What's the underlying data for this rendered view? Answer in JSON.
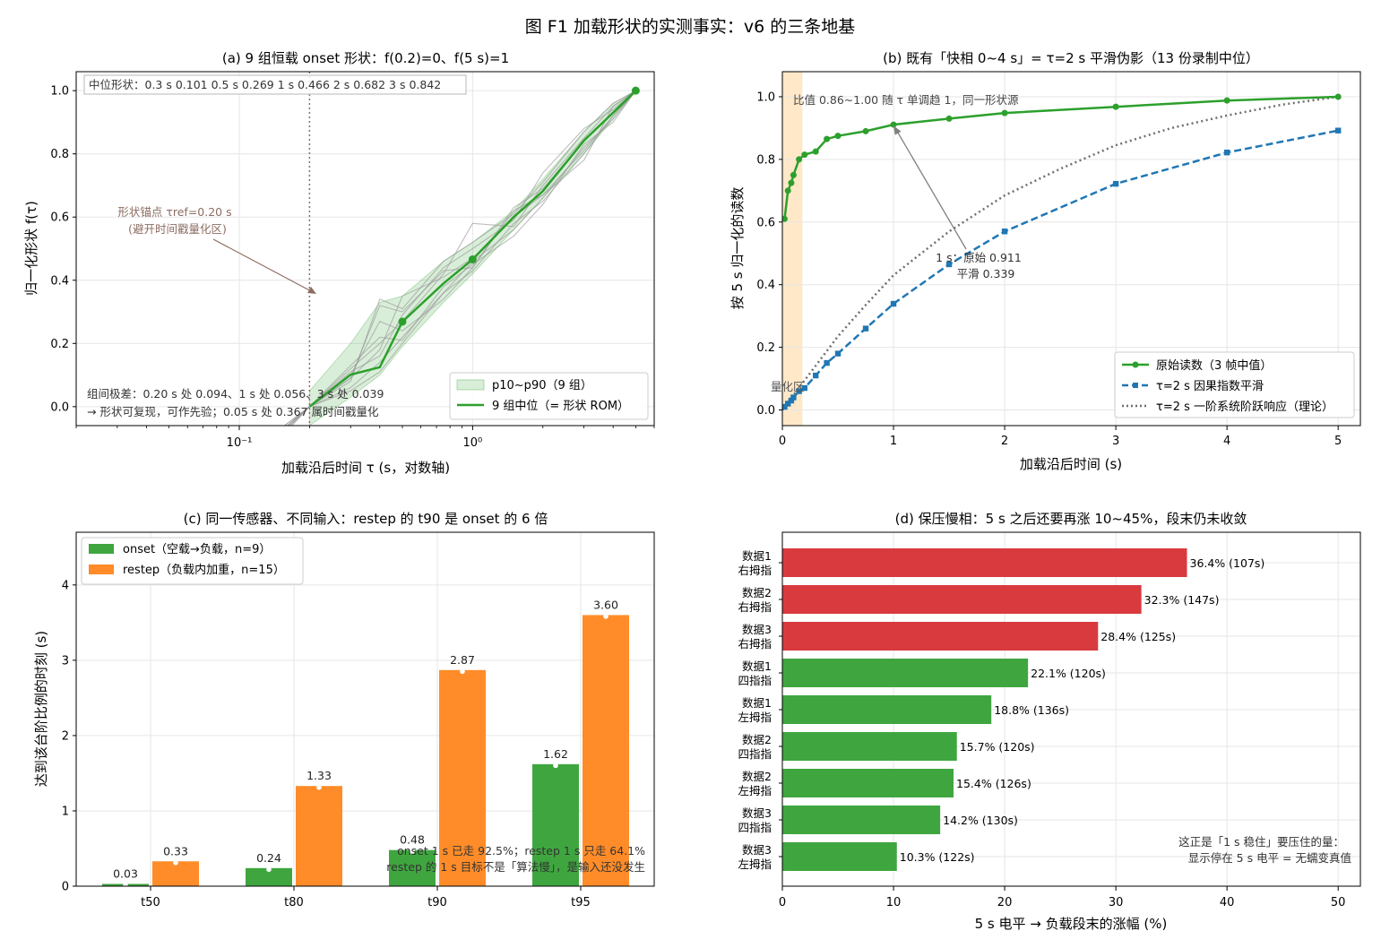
{
  "figure_title": "图 F1  加载形状的实测事实：v6 的三条地基",
  "chart_data": [
    {
      "type": "line",
      "title": "(a) 9 组恒载 onset 形状：f(0.2)=0、f(5 s)=1",
      "xlabel": "加载沿后时间 τ (s，对数轴)",
      "ylabel": "归一化形状 f(τ)",
      "xscale": "log",
      "xlim": [
        0.02,
        6
      ],
      "ylim": [
        -0.06,
        1.06
      ],
      "xticks": [
        {
          "value": 0.1,
          "label": "10⁻¹"
        },
        {
          "value": 1,
          "label": "10⁰"
        }
      ],
      "yticks": [
        "0.0",
        "0.2",
        "0.4",
        "0.6",
        "0.8",
        "1.0"
      ],
      "grid": true,
      "legend_position": "bottom-right",
      "median_series": {
        "name": "9 组中位（= 形状 ROM）",
        "color": "#2ca02c",
        "x": [
          0.2,
          0.3,
          0.4,
          0.5,
          0.75,
          1,
          1.5,
          2,
          3,
          4,
          5
        ],
        "y": [
          0.0,
          0.101,
          0.125,
          0.269,
          0.39,
          0.466,
          0.6,
          0.682,
          0.842,
          0.93,
          1.0
        ],
        "markers_x": [
          0.5,
          1,
          5
        ],
        "markers_y": [
          0.269,
          0.466,
          1.0
        ]
      },
      "band": {
        "name": "p10~p90（9 组）",
        "color": "#2ca02c",
        "x": [
          0.2,
          0.3,
          0.4,
          0.5,
          0.75,
          1,
          1.5,
          2,
          3,
          4,
          5
        ],
        "lower": [
          -0.06,
          0.03,
          0.1,
          0.19,
          0.33,
          0.42,
          0.56,
          0.66,
          0.8,
          0.91,
          1.0
        ],
        "upper": [
          0.05,
          0.2,
          0.33,
          0.35,
          0.46,
          0.52,
          0.62,
          0.72,
          0.87,
          0.96,
          1.0
        ]
      },
      "group_lines": [
        {
          "x": [
            0.05,
            0.15,
            0.2,
            0.3,
            0.4,
            0.5,
            0.75,
            1,
            1.5,
            2,
            3,
            4,
            5
          ],
          "y": [
            -0.37,
            -0.1,
            0.0,
            0.09,
            0.32,
            0.3,
            0.43,
            0.44,
            0.62,
            0.67,
            0.81,
            0.92,
            1.0
          ]
        },
        {
          "x": [
            0.05,
            0.15,
            0.2,
            0.3,
            0.4,
            0.5,
            0.75,
            1,
            1.5,
            2,
            3,
            4,
            5
          ],
          "y": [
            -0.3,
            -0.08,
            0.0,
            0.06,
            0.14,
            0.22,
            0.36,
            0.46,
            0.56,
            0.66,
            0.82,
            0.91,
            1.0
          ]
        },
        {
          "x": [
            0.05,
            0.15,
            0.2,
            0.3,
            0.4,
            0.5,
            0.75,
            1,
            1.5,
            2,
            3,
            4,
            5
          ],
          "y": [
            -0.33,
            -0.09,
            0.0,
            0.12,
            0.2,
            0.27,
            0.42,
            0.58,
            0.57,
            0.7,
            0.85,
            0.95,
            1.0
          ]
        },
        {
          "x": [
            0.05,
            0.15,
            0.2,
            0.3,
            0.4,
            0.5,
            0.75,
            1,
            1.5,
            2,
            3,
            4,
            5
          ],
          "y": [
            -0.28,
            -0.07,
            0.0,
            0.09,
            0.18,
            0.35,
            0.41,
            0.47,
            0.6,
            0.67,
            0.78,
            0.95,
            1.0
          ]
        },
        {
          "x": [
            0.05,
            0.15,
            0.2,
            0.3,
            0.4,
            0.5,
            0.75,
            1,
            1.5,
            2,
            3,
            4,
            5
          ],
          "y": [
            -0.31,
            -0.08,
            0.0,
            0.1,
            0.27,
            0.24,
            0.34,
            0.44,
            0.63,
            0.69,
            0.84,
            0.93,
            1.0
          ]
        },
        {
          "x": [
            0.05,
            0.15,
            0.2,
            0.3,
            0.4,
            0.5,
            0.75,
            1,
            1.5,
            2,
            3,
            4,
            5
          ],
          "y": [
            -0.29,
            -0.08,
            0.0,
            0.11,
            0.16,
            0.29,
            0.44,
            0.5,
            0.59,
            0.74,
            0.88,
            0.94,
            1.0
          ]
        },
        {
          "x": [
            0.05,
            0.15,
            0.2,
            0.3,
            0.4,
            0.5,
            0.75,
            1,
            1.5,
            2,
            3,
            4,
            5
          ],
          "y": [
            -0.32,
            -0.09,
            0.0,
            0.13,
            0.22,
            0.21,
            0.38,
            0.45,
            0.54,
            0.64,
            0.83,
            0.9,
            1.0
          ]
        },
        {
          "x": [
            0.05,
            0.15,
            0.2,
            0.3,
            0.4,
            0.5,
            0.75,
            1,
            1.5,
            2,
            3,
            4,
            5
          ],
          "y": [
            -0.27,
            -0.07,
            0.0,
            0.05,
            0.11,
            0.2,
            0.36,
            0.43,
            0.58,
            0.65,
            0.8,
            0.92,
            1.0
          ]
        },
        {
          "x": [
            0.05,
            0.15,
            0.2,
            0.3,
            0.4,
            0.5,
            0.75,
            1,
            1.5,
            2,
            3,
            4,
            5
          ],
          "y": [
            -0.3,
            -0.08,
            0.0,
            0.08,
            0.34,
            0.31,
            0.46,
            0.52,
            0.61,
            0.71,
            0.87,
            0.96,
            1.0
          ]
        }
      ],
      "anchor": {
        "x": 0.2,
        "label_line1": "形状锚点 τref=0.20 s",
        "label_line2": "(避开时间戳量化区)",
        "color": "#8c6d62"
      },
      "top_note": "中位形状：0.3 s 0.101  0.5 s 0.269  1 s 0.466  2 s 0.682  3 s 0.842",
      "bottom_note_line1": "组间极差：0.20 s 处 0.094、1 s 处 0.056、3 s 处 0.039",
      "bottom_note_line2": "→ 形状可复现，可作先验；0.05 s 处 0.367 属时间戳量化"
    },
    {
      "type": "line",
      "title": "(b) 既有「快相 0~4 s」= τ=2 s 平滑伪影（13 份录制中位）",
      "xlabel": "加载沿后时间 (s)",
      "ylabel": "按 5 s 归一化的读数",
      "xlim": [
        0,
        5.2
      ],
      "ylim": [
        -0.05,
        1.08
      ],
      "xticks": [
        "0",
        "1",
        "2",
        "3",
        "4",
        "5"
      ],
      "yticks": [
        "0.0",
        "0.2",
        "0.4",
        "0.6",
        "0.8",
        "1.0"
      ],
      "grid": true,
      "legend_position": "bottom-right",
      "shaded_region": {
        "x": [
          0,
          0.18
        ],
        "color": "#ffe6c2",
        "label": "量化区"
      },
      "series": [
        {
          "name": "原始读数（3 帧中值）",
          "color": "#2ca02c",
          "style": "solid",
          "marker": "circle",
          "x": [
            0.02,
            0.05,
            0.08,
            0.1,
            0.15,
            0.2,
            0.3,
            0.4,
            0.5,
            0.75,
            1,
            1.5,
            2,
            3,
            4,
            5
          ],
          "y": [
            0.61,
            0.7,
            0.725,
            0.75,
            0.8,
            0.815,
            0.825,
            0.865,
            0.875,
            0.89,
            0.911,
            0.93,
            0.948,
            0.968,
            0.988,
            1.0
          ]
        },
        {
          "name": "τ=2 s 因果指数平滑",
          "color": "#1f77b4",
          "style": "dashed",
          "marker": "square",
          "x": [
            0.02,
            0.05,
            0.08,
            0.1,
            0.15,
            0.2,
            0.3,
            0.4,
            0.5,
            0.75,
            1,
            1.5,
            2,
            3,
            4,
            5
          ],
          "y": [
            0.01,
            0.02,
            0.03,
            0.04,
            0.06,
            0.07,
            0.11,
            0.15,
            0.18,
            0.26,
            0.339,
            0.465,
            0.57,
            0.722,
            0.822,
            0.892
          ]
        },
        {
          "name": "τ=2 s 一阶系统阶跃响应（理论）",
          "color": "#6e6e6e",
          "style": "dotted",
          "marker": "none",
          "x": [
            0,
            0.25,
            0.5,
            0.75,
            1,
            1.5,
            2,
            2.5,
            3,
            3.5,
            4,
            4.5,
            5
          ],
          "y": [
            0,
            0.118,
            0.235,
            0.335,
            0.43,
            0.57,
            0.685,
            0.77,
            0.845,
            0.9,
            0.94,
            0.975,
            1.0
          ]
        }
      ],
      "annotations": {
        "ratio_note": "比值 0.86~1.00 随 τ 单调趋 1，同一形状源",
        "arrow_label_line1": "1 s：原始 0.911",
        "arrow_label_line2": "平滑 0.339",
        "arrow_target": {
          "x": 1,
          "y": 0.911
        }
      }
    },
    {
      "type": "bar",
      "title": "(c) 同一传感器、不同输入：restep 的 t90 是 onset 的 6 倍",
      "xlabel": "",
      "ylabel": "达到该台阶比例的时刻 (s)",
      "ylim": [
        0,
        4.7
      ],
      "yticks": [
        "0",
        "1",
        "2",
        "3",
        "4"
      ],
      "categories": [
        "t50",
        "t80",
        "t90",
        "t95"
      ],
      "grid": true,
      "legend_position": "top-left",
      "series": [
        {
          "name": "onset（空载→负载，n=9）",
          "color": "#3fa63f",
          "values": [
            0.03,
            0.24,
            0.48,
            1.62
          ],
          "labels": [
            "0.03",
            "0.24",
            "0.48",
            "1.62"
          ]
        },
        {
          "name": "restep（负载内加重，n=15）",
          "color": "#ff8c28",
          "values": [
            0.33,
            1.33,
            2.87,
            3.6
          ],
          "labels": [
            "0.33",
            "1.33",
            "2.87",
            "3.60"
          ]
        }
      ],
      "note_line1": "onset 1 s 已走 92.5%；restep 1 s 只走 64.1%",
      "note_line2": "restep 的 1 s 目标不是「算法慢」，是输入还没发生"
    },
    {
      "type": "bar",
      "orientation": "horizontal",
      "title": "(d) 保压慢相：5 s 之后还要再涨 10~45%，段末仍未收敛",
      "xlabel": "5 s 电平 → 负载段末的涨幅 (%)",
      "xlim": [
        0,
        52
      ],
      "xticks": [
        "0",
        "10",
        "20",
        "30",
        "40",
        "50"
      ],
      "grid": true,
      "categories": [
        [
          "数据1",
          "右拇指"
        ],
        [
          "数据2",
          "右拇指"
        ],
        [
          "数据3",
          "右拇指"
        ],
        [
          "数据1",
          "四指指"
        ],
        [
          "数据1",
          "左拇指"
        ],
        [
          "数据2",
          "四指指"
        ],
        [
          "数据2",
          "左拇指"
        ],
        [
          "数据3",
          "四指指"
        ],
        [
          "数据3",
          "左拇指"
        ]
      ],
      "values": [
        36.4,
        32.3,
        28.4,
        22.1,
        18.8,
        15.7,
        15.4,
        14.2,
        10.3
      ],
      "labels": [
        "36.4%  (107s)",
        "32.3%  (147s)",
        "28.4%  (125s)",
        "22.1%  (120s)",
        "18.8%  (136s)",
        "15.7%  (120s)",
        "15.4%  (126s)",
        "14.2%  (130s)",
        "10.3%  (122s)"
      ],
      "colors": [
        "#d93a3e",
        "#d93a3e",
        "#d93a3e",
        "#3fa63f",
        "#3fa63f",
        "#3fa63f",
        "#3fa63f",
        "#3fa63f",
        "#3fa63f"
      ],
      "note_line1": "这正是「1 s 稳住」要压住的量：",
      "note_line2": "显示停在 5 s 电平 = 无蠕变真值"
    }
  ]
}
